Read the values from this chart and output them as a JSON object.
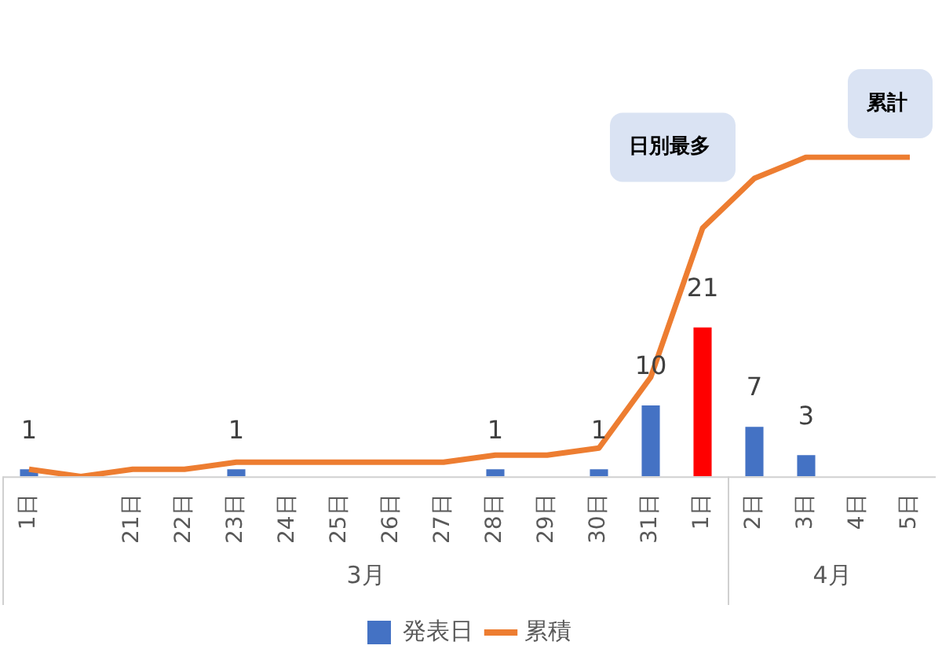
{
  "chart_data": {
    "type": "bar",
    "categories": [
      "1日",
      null,
      "21日",
      "22日",
      "23日",
      "24日",
      "25日",
      "26日",
      "27日",
      "28日",
      "29日",
      "30日",
      "31日",
      "1日",
      "2日",
      "3日",
      "4日",
      "5日"
    ],
    "series": [
      {
        "name": "発表日",
        "colors": [
          "#4472c4",
          null,
          null,
          null,
          "#4472c4",
          null,
          null,
          null,
          null,
          "#4472c4",
          null,
          "#4472c4",
          "#4472c4",
          "#ff0000",
          "#4472c4",
          "#4472c4",
          null,
          null
        ],
        "color": "#4472c4",
        "values": [
          1,
          null,
          null,
          null,
          1,
          null,
          null,
          null,
          null,
          1,
          null,
          1,
          10,
          21,
          7,
          3,
          null,
          null
        ],
        "value_labels": [
          "1",
          null,
          null,
          null,
          "1",
          null,
          null,
          null,
          null,
          "1",
          null,
          "1",
          "10",
          "21",
          "7",
          "3",
          null,
          null
        ]
      },
      {
        "name": "累積",
        "type": "line",
        "color": "#ed7d31",
        "values": [
          1,
          0,
          1,
          1,
          2,
          2,
          2,
          2,
          2,
          3,
          3,
          4,
          14,
          35,
          42,
          45,
          45,
          45
        ]
      }
    ],
    "tick_labels": "x",
    "legend": "bottom",
    "marker": "none",
    "annotations": [
      "日別最多",
      "累計",
      "3月",
      "4月"
    ]
  }
}
